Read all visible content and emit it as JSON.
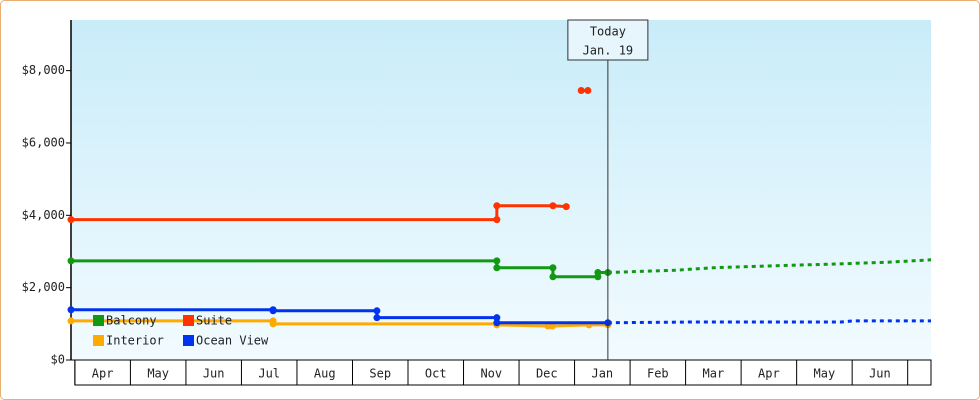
{
  "chart_data": {
    "type": "step-line",
    "xlim": [
      -0.07,
      15.42
    ],
    "xticks": [
      {
        "value": 0,
        "label": "Apr"
      },
      {
        "value": 1,
        "label": "May"
      },
      {
        "value": 2,
        "label": "Jun"
      },
      {
        "value": 3,
        "label": "Jul"
      },
      {
        "value": 4,
        "label": "Aug"
      },
      {
        "value": 5,
        "label": "Sep"
      },
      {
        "value": 6,
        "label": "Oct"
      },
      {
        "value": 7,
        "label": "Nov"
      },
      {
        "value": 8,
        "label": "Dec"
      },
      {
        "value": 9,
        "label": "Jan"
      },
      {
        "value": 10,
        "label": "Feb"
      },
      {
        "value": 11,
        "label": "Mar"
      },
      {
        "value": 12,
        "label": "Apr"
      },
      {
        "value": 13,
        "label": "May"
      },
      {
        "value": 14,
        "label": "Jun"
      }
    ],
    "ylim": [
      0,
      9400
    ],
    "yticks": [
      {
        "value": 0,
        "label": "$0"
      },
      {
        "value": 2000,
        "label": "$2,000"
      },
      {
        "value": 4000,
        "label": "$4,000"
      },
      {
        "value": 6000,
        "label": "$6,000"
      },
      {
        "value": 8000,
        "label": "$8,000"
      }
    ],
    "legend": "bottom-left",
    "annotation": {
      "lines": [
        "Today",
        "Jan. 19"
      ],
      "x": 9.6
    },
    "series": [
      {
        "name": "Balcony",
        "color": "#119911",
        "x": [
          -0.07,
          7.6,
          7.6,
          8.61,
          8.61,
          9.42,
          9.42,
          9.6
        ],
        "values": [
          2740,
          2740,
          2550,
          2550,
          2300,
          2300,
          2420,
          2420
        ],
        "projection_x": [
          9.6,
          10.8,
          11.5,
          12.5,
          13.6,
          14.6,
          15.42
        ],
        "projection_values": [
          2420,
          2480,
          2550,
          2600,
          2650,
          2700,
          2770
        ]
      },
      {
        "name": "Suite",
        "color": "#ff3300",
        "x": [
          -0.07,
          7.6,
          7.6,
          8.61,
          8.85,
          null,
          9.12,
          9.24
        ],
        "values": [
          3880,
          3880,
          4265,
          4265,
          4240,
          null,
          7450,
          7450
        ]
      },
      {
        "name": "Interior",
        "color": "#ffaa00",
        "x": [
          -0.07,
          3.57,
          3.57,
          7.6,
          7.6,
          8.52,
          8.6,
          9.26,
          9.6
        ],
        "values": [
          1080,
          1080,
          1000,
          1000,
          970,
          940,
          940,
          970,
          970
        ]
      },
      {
        "name": "Ocean View",
        "color": "#0033ee",
        "x": [
          -0.07,
          3.57,
          3.57,
          5.44,
          5.44,
          7.6,
          7.6,
          9.6
        ],
        "values": [
          1390,
          1390,
          1360,
          1360,
          1170,
          1170,
          1030,
          1030
        ],
        "projection_x": [
          9.6,
          11.1,
          13.8,
          14.0,
          15.42
        ],
        "projection_values": [
          1030,
          1050,
          1050,
          1080,
          1080
        ]
      }
    ]
  }
}
